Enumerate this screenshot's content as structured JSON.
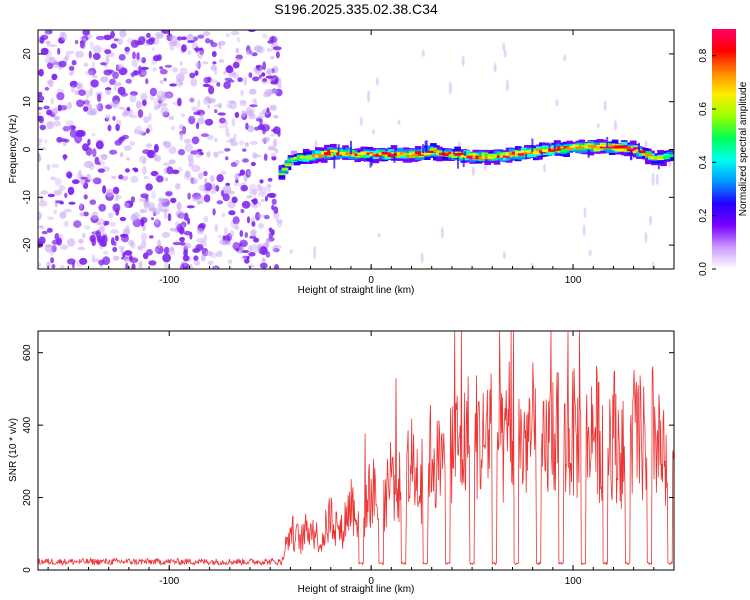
{
  "title": "S196.2025.335.02.38.C34",
  "colors": {
    "axis": "#000000",
    "noise_dot": "#7f22f0",
    "snr_line": "#ee3333",
    "colorbar": [
      "#ffffff",
      "#cc99ff",
      "#7700ff",
      "#2200ff",
      "#0099ff",
      "#00ffee",
      "#00ff55",
      "#99ff00",
      "#ffee00",
      "#ff8800",
      "#ff0000",
      "#ff0066"
    ]
  },
  "chart_data": [
    {
      "type": "heatmap",
      "name": "spectrogram",
      "xlabel": "Height of straight line (km)",
      "ylabel": "Frequency (Hz)",
      "xlim": [
        -165,
        150
      ],
      "ylim": [
        -25,
        25
      ],
      "x_ticks": [
        -100,
        0,
        100
      ],
      "y_ticks": [
        -20,
        -10,
        0,
        10,
        20
      ],
      "x_tick_labels": [
        "-100",
        "0",
        "100"
      ],
      "y_tick_labels": [
        "-20",
        "-10",
        "0",
        "10",
        "20"
      ],
      "noise_region_x": [
        -165,
        -45
      ],
      "signal_start_x": -45,
      "ridge": {
        "x": [
          -45,
          -40,
          -30,
          -20,
          -10,
          0,
          10,
          20,
          30,
          40,
          50,
          60,
          70,
          80,
          90,
          100,
          110,
          120,
          130,
          140,
          150
        ],
        "freq_hz": [
          -5,
          -2,
          -1.5,
          -0.5,
          -1,
          -1,
          -1,
          -1,
          -0.5,
          -1,
          -1.5,
          -1.5,
          -1,
          -0.5,
          0,
          0.5,
          0.5,
          0.5,
          0,
          -2,
          -1
        ],
        "peak_amplitude": [
          0.55,
          0.6,
          0.65,
          0.8,
          0.75,
          0.8,
          0.85,
          0.75,
          0.8,
          0.8,
          0.85,
          0.8,
          0.85,
          0.8,
          0.9,
          0.75,
          0.85,
          0.9,
          0.85,
          0.6,
          0.5
        ]
      },
      "colorbar": {
        "label": "Normalized spectral amplitude",
        "range": [
          0,
          0.9
        ],
        "ticks": [
          0.0,
          0.2,
          0.4,
          0.6,
          0.8
        ],
        "tick_labels": [
          "0.0",
          "0.2",
          "0.4",
          "0.6",
          "0.8"
        ]
      }
    },
    {
      "type": "line",
      "name": "snr",
      "xlabel": "Height of straight line (km)",
      "ylabel": "SNR (10 * v/v)",
      "xlim": [
        -165,
        150
      ],
      "ylim": [
        0,
        660
      ],
      "x_ticks": [
        -100,
        0,
        100
      ],
      "y_ticks": [
        0,
        200,
        400,
        600
      ],
      "x_tick_labels": [
        "-100",
        "0",
        "100"
      ],
      "y_tick_labels": [
        "0",
        "200",
        "400",
        "600"
      ],
      "series": [
        {
          "name": "SNR",
          "x": [
            -165,
            -140,
            -120,
            -100,
            -80,
            -60,
            -45,
            -40,
            -35,
            -30,
            -25,
            -20,
            -15,
            -10,
            -5,
            0,
            5,
            10,
            15,
            20,
            25,
            30,
            35,
            40,
            45,
            50,
            55,
            60,
            65,
            70,
            75,
            80,
            85,
            90,
            95,
            100,
            105,
            110,
            115,
            120,
            125,
            130,
            135,
            140,
            145,
            150
          ],
          "values": [
            15,
            15,
            16,
            15,
            15,
            16,
            20,
            120,
            90,
            140,
            80,
            170,
            110,
            210,
            150,
            250,
            190,
            300,
            230,
            320,
            270,
            360,
            300,
            400,
            370,
            440,
            380,
            470,
            360,
            420,
            380,
            430,
            350,
            440,
            380,
            420,
            360,
            440,
            390,
            430,
            350,
            430,
            380,
            430,
            300,
            250
          ],
          "dip_centers_x": [
            -5,
            5,
            16,
            27,
            38,
            50,
            61,
            72,
            83,
            94,
            105,
            116,
            127,
            138,
            148
          ],
          "dip_level": 15
        }
      ]
    }
  ]
}
